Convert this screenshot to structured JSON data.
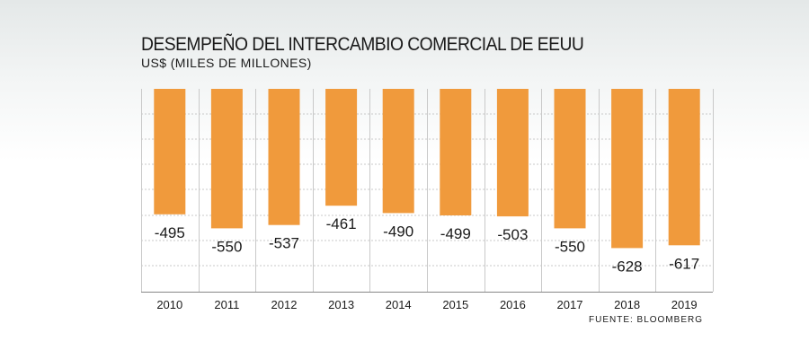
{
  "header": {
    "title": "DESEMPEÑO DEL INTERCAMBIO COMERCIAL DE EEUU",
    "subtitle": "US$ (MILES DE MILLONES)"
  },
  "footer": {
    "source": "FUENTE: BLOOMBERG"
  },
  "colors": {
    "bar": "#f09a3c",
    "grid": "#c9c9c9",
    "axis": "#888888",
    "text": "#1a1a1a"
  },
  "chart_data": {
    "type": "bar",
    "categories": [
      "2010",
      "2011",
      "2012",
      "2013",
      "2014",
      "2015",
      "2016",
      "2017",
      "2018",
      "2019"
    ],
    "values": [
      -495,
      -550,
      -537,
      -461,
      -490,
      -499,
      -503,
      -550,
      -628,
      -617
    ],
    "data_labels": [
      "-495",
      "-550",
      "-537",
      "-461",
      "-490",
      "-499",
      "-503",
      "-550",
      "-628",
      "-617"
    ],
    "ylim": [
      -800,
      0
    ],
    "grid": true,
    "legend": "none",
    "xlabel": "",
    "ylabel": ""
  }
}
